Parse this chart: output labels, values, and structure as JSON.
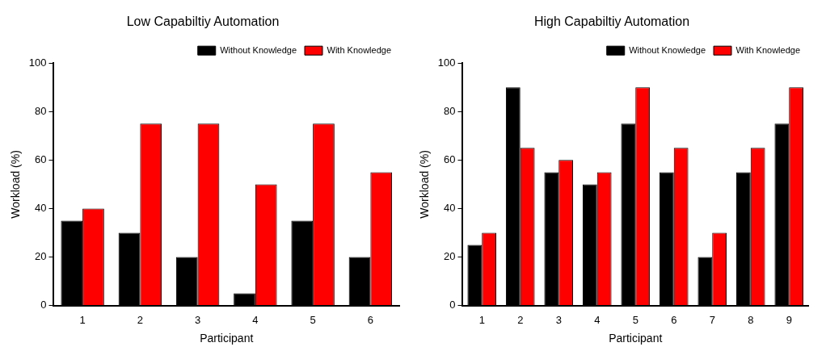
{
  "chart_data": [
    {
      "type": "bar",
      "title": "Low Capabiltiy Automation",
      "xlabel": "Participant",
      "ylabel": "Workload (%)",
      "categories": [
        "1",
        "2",
        "3",
        "4",
        "5",
        "6"
      ],
      "series": [
        {
          "name": "Without Knowledge",
          "color": "#000000",
          "values": [
            35,
            30,
            20,
            5,
            35,
            20
          ]
        },
        {
          "name": "With Knowledge",
          "color": "#ff0000",
          "values": [
            40,
            75,
            75,
            50,
            75,
            55
          ]
        }
      ],
      "ylim": [
        0,
        100
      ],
      "yticks": [
        0,
        20,
        40,
        60,
        80,
        100
      ],
      "grid": false,
      "legend": "top right"
    },
    {
      "type": "bar",
      "title": "High Capabiltiy Automation",
      "xlabel": "Participant",
      "ylabel": "Workload (%)",
      "categories": [
        "1",
        "2",
        "3",
        "4",
        "5",
        "6",
        "7",
        "8",
        "9"
      ],
      "series": [
        {
          "name": "Without Knowledge",
          "color": "#000000",
          "values": [
            25,
            90,
            55,
            50,
            75,
            55,
            20,
            55,
            75
          ]
        },
        {
          "name": "With Knowledge",
          "color": "#ff0000",
          "values": [
            30,
            65,
            60,
            55,
            90,
            65,
            30,
            65,
            90
          ]
        }
      ],
      "ylim": [
        0,
        100
      ],
      "yticks": [
        0,
        20,
        40,
        60,
        80,
        100
      ],
      "grid": false,
      "legend": "top right"
    }
  ]
}
